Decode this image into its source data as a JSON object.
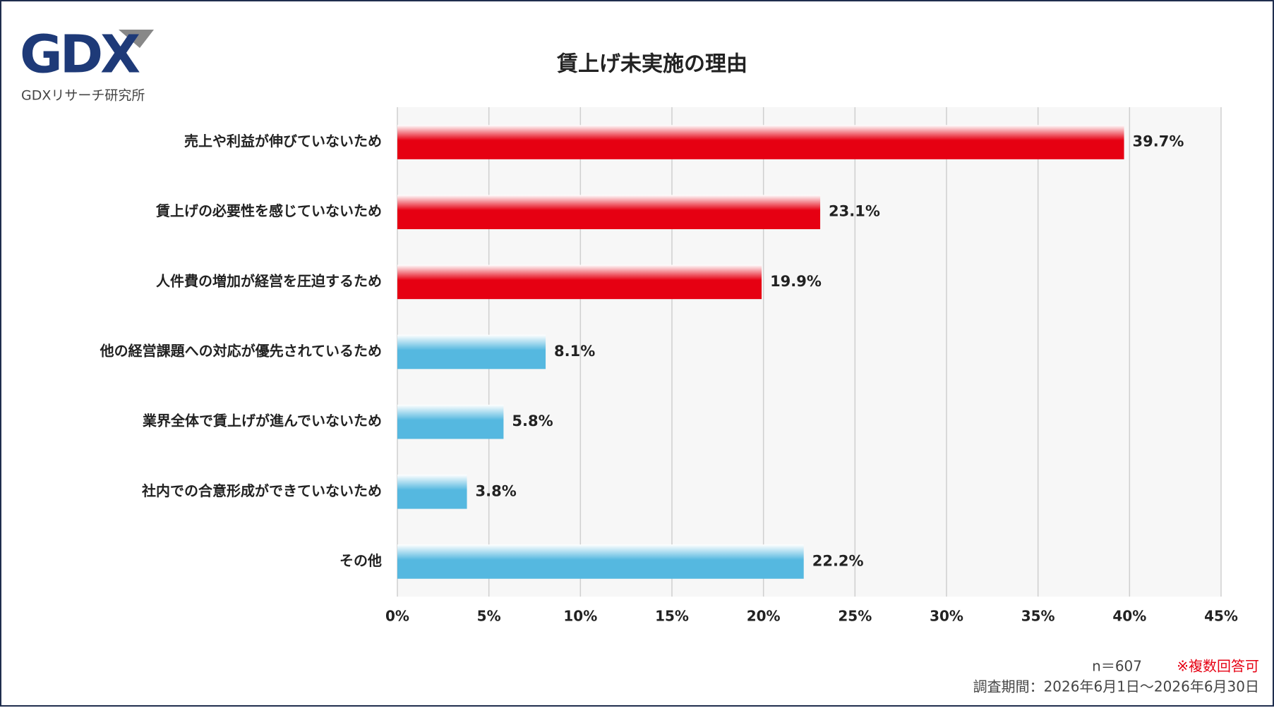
{
  "logo": {
    "mark": "GDX",
    "text": "GDXリサーチ研究所"
  },
  "chart_data": {
    "type": "bar",
    "orientation": "horizontal",
    "title": "賃上げ未実施の理由",
    "categories": [
      "売上や利益が伸びていないため",
      "賃上げの必要性を感じていないため",
      "人件費の増加が経営を圧迫するため",
      "他の経営課題への対応が優先されているため",
      "業界全体で賃上げが進んでいないため",
      "社内での合意形成ができていないため",
      "その他"
    ],
    "values": [
      39.7,
      23.1,
      19.9,
      8.1,
      5.8,
      3.8,
      22.2
    ],
    "value_labels": [
      "39.7%",
      "23.1%",
      "19.9%",
      "8.1%",
      "5.8%",
      "3.8%",
      "22.2%"
    ],
    "colors": [
      "#e60012",
      "#e60012",
      "#e60012",
      "#55b8e0",
      "#55b8e0",
      "#55b8e0",
      "#55b8e0"
    ],
    "xlim": [
      0,
      45
    ],
    "xticks": [
      {
        "value": 0,
        "label": "0%"
      },
      {
        "value": 5,
        "label": "5%"
      },
      {
        "value": 10,
        "label": "10%"
      },
      {
        "value": 15,
        "label": "15%"
      },
      {
        "value": 20,
        "label": "20%"
      },
      {
        "value": 25,
        "label": "25%"
      },
      {
        "value": 30,
        "label": "30%"
      },
      {
        "value": 35,
        "label": "35%"
      },
      {
        "value": 40,
        "label": "40%"
      },
      {
        "value": 45,
        "label": "45%"
      }
    ],
    "grid": true
  },
  "notes": {
    "sample": "n＝607",
    "multiple": "※複数回答可",
    "period": "調査期間：2026年6月1日～2026年6月30日"
  }
}
